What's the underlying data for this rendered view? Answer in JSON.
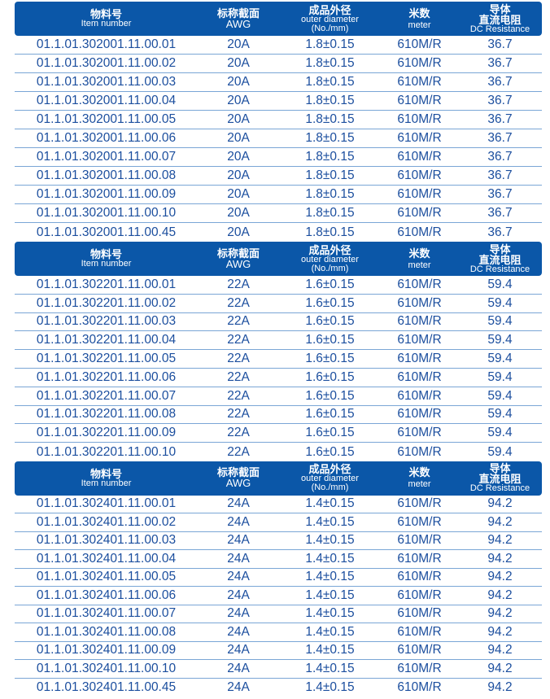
{
  "colors": {
    "header_bg": "#0b57a8",
    "text": "#1b4e9e",
    "divider": "#7aa6d6"
  },
  "header": {
    "item": {
      "zh": "物料号",
      "en": "Item number"
    },
    "awg": {
      "zh": "标称截面",
      "en": "AWG"
    },
    "od": {
      "zh": "成品外径",
      "en": "outer diameter",
      "en2": "(No./mm)"
    },
    "meter": {
      "zh": "米数",
      "en": "meter"
    },
    "res": {
      "zh": "导体",
      "zh2": "直流电阻",
      "en": "DC Resistance"
    }
  },
  "sections": [
    {
      "awg": "20A",
      "od": "1.8±0.15",
      "meter": "610M/R",
      "res": "36.7",
      "items": [
        "01.1.01.302001.11.00.01",
        "01.1.01.302001.11.00.02",
        "01.1.01.302001.11.00.03",
        "01.1.01.302001.11.00.04",
        "01.1.01.302001.11.00.05",
        "01.1.01.302001.11.00.06",
        "01.1.01.302001.11.00.07",
        "01.1.01.302001.11.00.08",
        "01.1.01.302001.11.00.09",
        "01.1.01.302001.11.00.10",
        "01.1.01.302001.11.00.45"
      ]
    },
    {
      "awg": "22A",
      "od": "1.6±0.15",
      "meter": "610M/R",
      "res": "59.4",
      "items": [
        "01.1.01.302201.11.00.01",
        "01.1.01.302201.11.00.02",
        "01.1.01.302201.11.00.03",
        "01.1.01.302201.11.00.04",
        "01.1.01.302201.11.00.05",
        "01.1.01.302201.11.00.06",
        "01.1.01.302201.11.00.07",
        "01.1.01.302201.11.00.08",
        "01.1.01.302201.11.00.09",
        "01.1.01.302201.11.00.10"
      ]
    },
    {
      "awg": "24A",
      "od": "1.4±0.15",
      "meter": "610M/R",
      "res": "94.2",
      "items": [
        "01.1.01.302401.11.00.01",
        "01.1.01.302401.11.00.02",
        "01.1.01.302401.11.00.03",
        "01.1.01.302401.11.00.04",
        "01.1.01.302401.11.00.05",
        "01.1.01.302401.11.00.06",
        "01.1.01.302401.11.00.07",
        "01.1.01.302401.11.00.08",
        "01.1.01.302401.11.00.09",
        "01.1.01.302401.11.00.10",
        "01.1.01.302401.11.00.45"
      ]
    }
  ]
}
